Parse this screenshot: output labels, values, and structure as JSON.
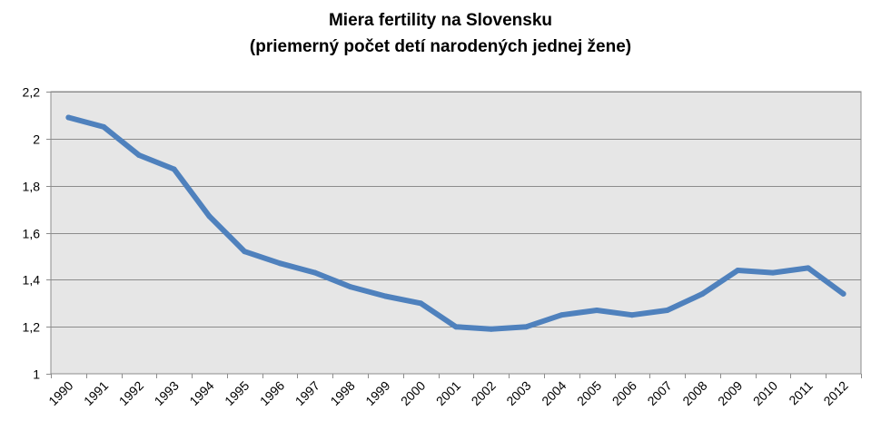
{
  "chart_data": {
    "type": "line",
    "title": "Miera fertility na Slovensku",
    "subtitle": "(priemerný počet detí narodených jednej žene)",
    "x": [
      "1990",
      "1991",
      "1992",
      "1993",
      "1994",
      "1995",
      "1996",
      "1997",
      "1998",
      "1999",
      "2000",
      "2001",
      "2002",
      "2003",
      "2004",
      "2005",
      "2006",
      "2007",
      "2008",
      "2009",
      "2010",
      "2011",
      "2012"
    ],
    "series": [
      {
        "values": [
          2.09,
          2.05,
          1.93,
          1.87,
          1.67,
          1.52,
          1.47,
          1.43,
          1.37,
          1.33,
          1.3,
          1.2,
          1.19,
          1.2,
          1.25,
          1.27,
          1.25,
          1.27,
          1.34,
          1.44,
          1.43,
          1.45,
          1.34
        ],
        "color": "#4f81bd"
      }
    ],
    "yticks": [
      "1",
      "1,2",
      "1,4",
      "1,6",
      "1,8",
      "2",
      "2,2"
    ],
    "ylim": [
      1,
      2.2
    ],
    "xlabel": "",
    "ylabel": "",
    "grid": true,
    "plot_background": "#e6e6e6",
    "gridline_color": "#8c8c8c"
  }
}
